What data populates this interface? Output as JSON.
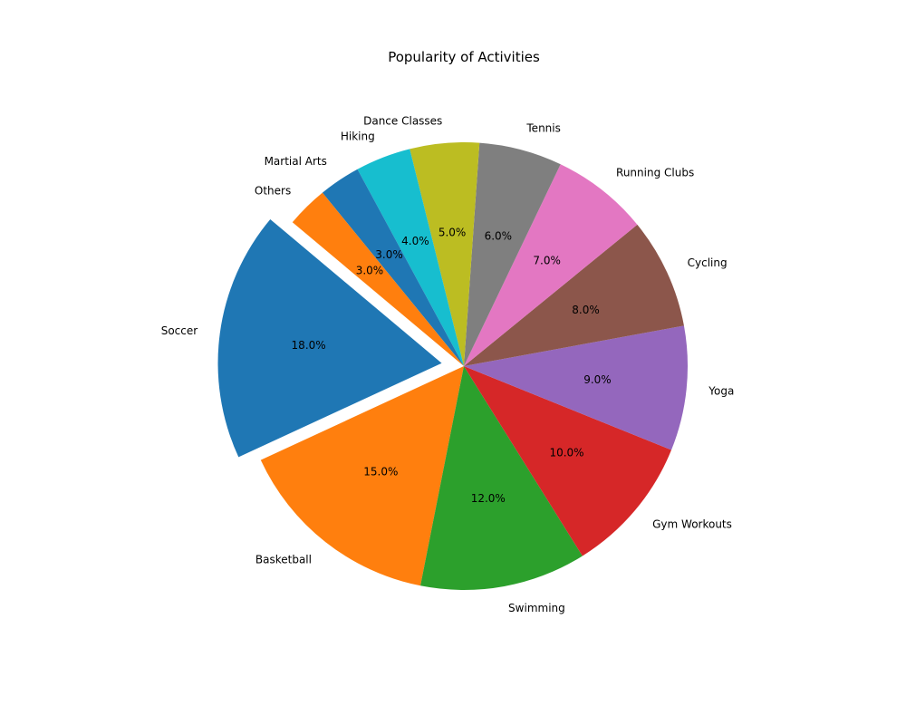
{
  "chart_data": {
    "type": "pie",
    "title": "Popularity of Activities",
    "categories": [
      "Soccer",
      "Basketball",
      "Swimming",
      "Gym Workouts",
      "Yoga",
      "Cycling",
      "Running Clubs",
      "Tennis",
      "Dance Classes",
      "Hiking",
      "Martial Arts",
      "Others"
    ],
    "values": [
      18,
      15,
      12,
      10,
      9,
      8,
      7,
      6,
      5,
      4,
      3,
      3
    ],
    "value_labels": [
      "18.0%",
      "15.0%",
      "12.0%",
      "10.0%",
      "9.0%",
      "8.0%",
      "7.0%",
      "6.0%",
      "5.0%",
      "4.0%",
      "3.0%",
      "3.0%"
    ],
    "colors": [
      "#1f77b4",
      "#ff7f0e",
      "#2ca02c",
      "#d62728",
      "#9467bd",
      "#8c564b",
      "#e377c2",
      "#7f7f7f",
      "#bcbd22",
      "#17becf",
      "#1f77b4",
      "#ff7f0e"
    ],
    "exploded": [
      "Soccer"
    ],
    "start_angle_deg": 140,
    "direction": "counterclockwise"
  }
}
